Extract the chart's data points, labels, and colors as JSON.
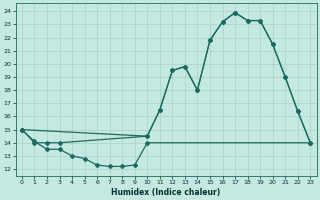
{
  "xlabel": "Humidex (Indice chaleur)",
  "bg_color": "#c5e8e0",
  "grid_color": "#aad0c8",
  "line_color": "#1a6b60",
  "xlim": [
    -0.5,
    23.5
  ],
  "ylim": [
    11.5,
    24.6
  ],
  "yticks": [
    12,
    13,
    14,
    15,
    16,
    17,
    18,
    19,
    20,
    21,
    22,
    23,
    24
  ],
  "xticks": [
    0,
    1,
    2,
    3,
    4,
    5,
    6,
    7,
    8,
    9,
    10,
    11,
    12,
    13,
    14,
    15,
    16,
    17,
    18,
    19,
    20,
    21,
    22,
    23
  ],
  "line1_x": [
    0,
    1,
    2,
    3,
    10,
    11,
    12,
    13,
    14,
    15,
    16,
    17,
    18,
    19,
    20,
    21,
    22,
    23
  ],
  "line1_y": [
    15,
    14,
    14,
    14,
    14.5,
    16.5,
    19.5,
    19.8,
    18.0,
    21.8,
    23.2,
    23.9,
    23.3,
    23.3,
    21.5,
    19.0,
    16.4,
    14.0
  ],
  "line2_x": [
    0,
    10,
    11,
    12,
    13,
    14,
    15,
    16,
    17,
    18,
    19,
    20,
    21,
    22,
    23
  ],
  "line2_y": [
    15,
    14.5,
    16.5,
    19.5,
    19.8,
    18.0,
    21.8,
    23.2,
    23.9,
    23.3,
    23.3,
    21.5,
    19.0,
    16.4,
    14.0
  ],
  "line3_x": [
    0,
    1,
    2,
    3,
    4,
    5,
    6,
    7,
    8,
    9,
    10,
    23
  ],
  "line3_y": [
    15,
    14.1,
    13.5,
    13.5,
    13.0,
    12.8,
    12.3,
    12.2,
    12.2,
    12.3,
    14.0,
    14.0
  ]
}
